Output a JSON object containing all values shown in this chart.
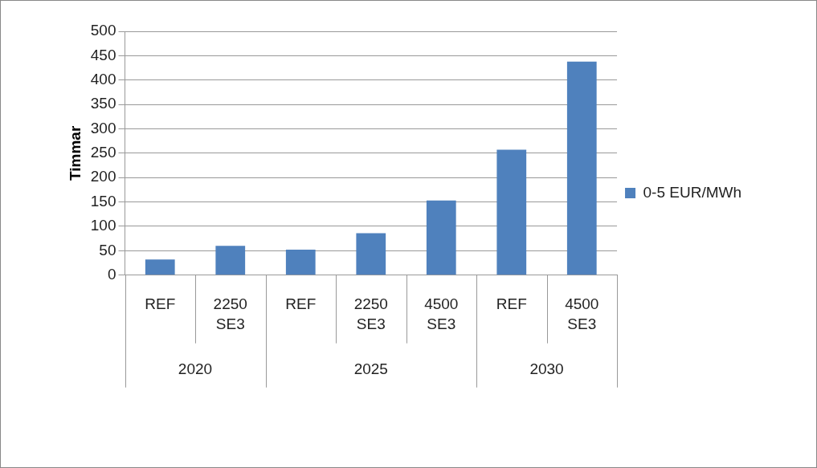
{
  "chart_data": {
    "type": "bar",
    "ylabel": "Timmar",
    "categories": [
      "REF",
      "2250 SE3",
      "REF",
      "2250 SE3",
      "4500 SE3",
      "REF",
      "4500 SE3"
    ],
    "series": [
      {
        "name": "0-5 EUR/MWh",
        "color": "#4f81bd",
        "values": [
          32,
          60,
          52,
          86,
          153,
          257,
          438
        ]
      }
    ],
    "annotations": [
      "2020",
      "2025",
      "2030"
    ],
    "ylim": [
      0,
      500
    ],
    "yticks": [
      0,
      50,
      100,
      150,
      200,
      250,
      300,
      350,
      400,
      450,
      500
    ],
    "grid": "y",
    "legend": "right"
  }
}
